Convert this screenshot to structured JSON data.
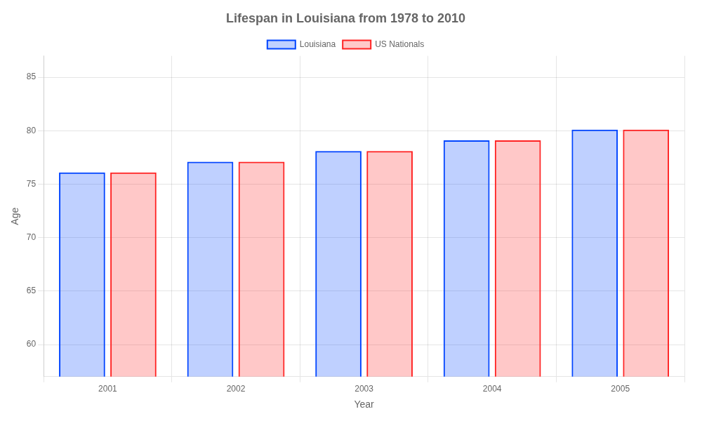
{
  "chart_data": {
    "type": "bar",
    "title": "Lifespan in Louisiana from 1978 to 2010",
    "x_label": "Year",
    "y_label": "Age",
    "categories": [
      "2001",
      "2002",
      "2003",
      "2004",
      "2005"
    ],
    "series": [
      {
        "name": "Louisiana",
        "color": "#0044ff",
        "values": [
          76.1,
          77.1,
          78.1,
          79.1,
          80.1
        ]
      },
      {
        "name": "US Nationals",
        "color": "#ff2222",
        "values": [
          76.1,
          77.1,
          78.1,
          79.1,
          80.1
        ]
      }
    ],
    "ylim": [
      57,
      87
    ],
    "yticks": [
      60,
      65,
      70,
      75,
      80,
      85
    ],
    "grid": true,
    "legend": "top"
  }
}
